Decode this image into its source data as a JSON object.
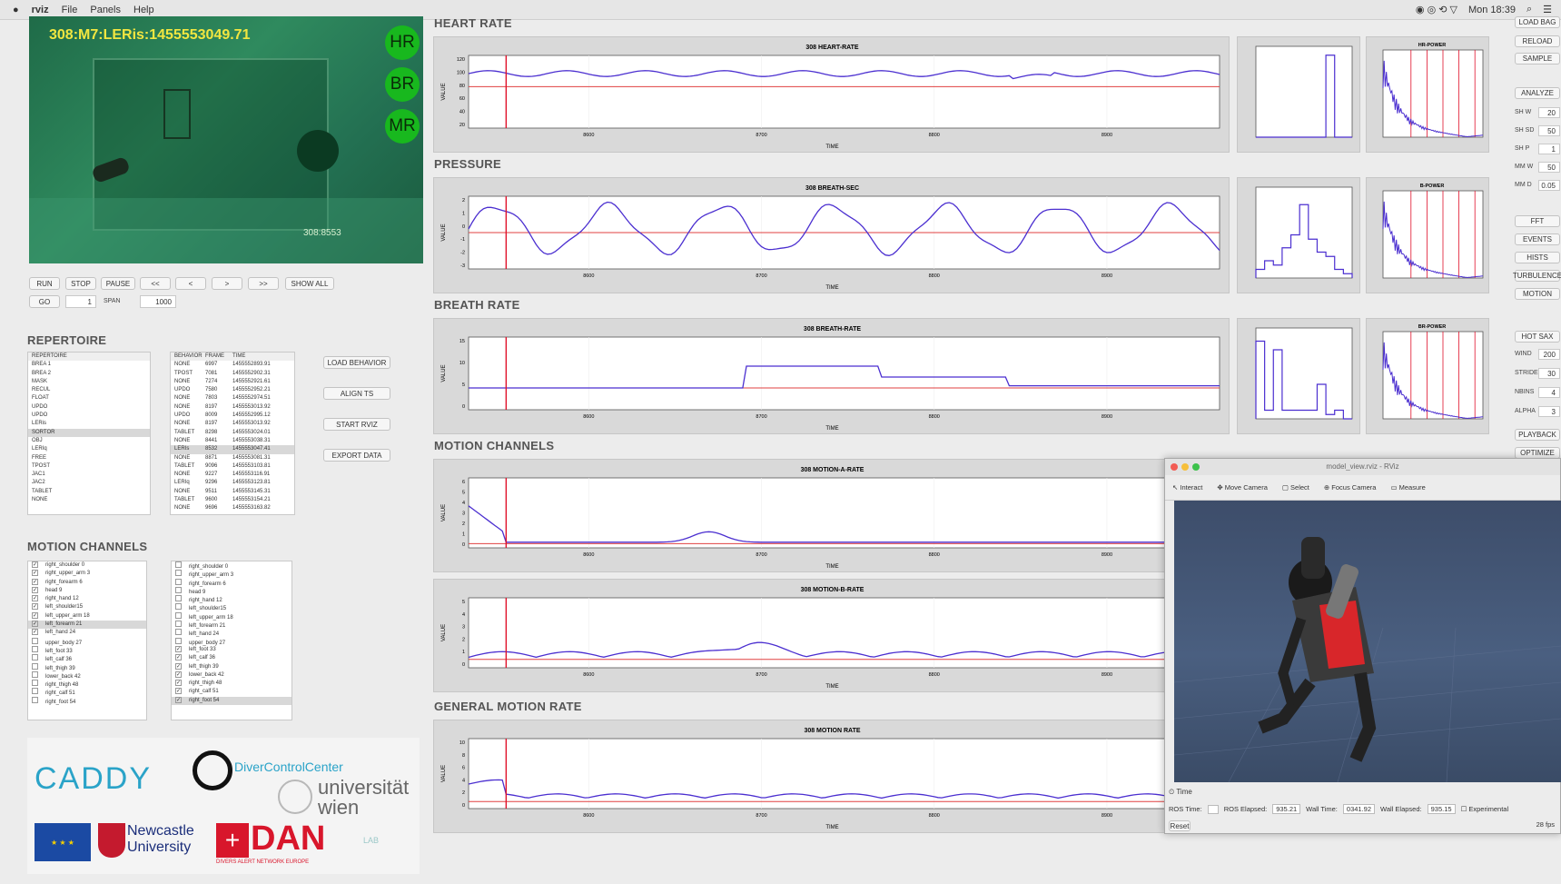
{
  "menubar": {
    "apple": "",
    "app": "rviz",
    "items": [
      "File",
      "Panels",
      "Help"
    ],
    "clock": "Mon 18:39"
  },
  "video": {
    "overlay": "308:M7:LERis:1455553049.71",
    "timecode": "308:8553",
    "indicators": [
      "HR",
      "BR",
      "MR"
    ]
  },
  "controls": {
    "buttons": [
      "RUN",
      "STOP",
      "PAUSE",
      "<<",
      "<",
      ">",
      ">>",
      "SHOW ALL"
    ],
    "go": "GO",
    "go_value": "1",
    "span_label": "SPAN",
    "span_value": "1000"
  },
  "repertoire": {
    "title": "REPERTOIRE",
    "header": "REPERTOIRE",
    "items": [
      "BREA 1",
      "BREA 2",
      "MASK",
      "RECUL",
      "FLOAT",
      "UPDO",
      "UPDO",
      "LERis",
      "SORTOR",
      "OBJ",
      "LERIq",
      "FREE",
      "TPOST",
      "JAC1",
      "JAC2",
      "TABLET",
      "NONE"
    ],
    "selected_index": 8,
    "events_header": {
      "behavior": "BEHAVIOR",
      "frame": "FRAME",
      "time": "TIME"
    },
    "events": [
      [
        "NONE",
        "6997",
        "1455552893.91"
      ],
      [
        "TPOST",
        "7081",
        "1455552902.31"
      ],
      [
        "NONE",
        "7274",
        "1455552921.61"
      ],
      [
        "UPDO",
        "7580",
        "1455552952.21"
      ],
      [
        "NONE",
        "7803",
        "1455552974.51"
      ],
      [
        "NONE",
        "8197",
        "1455553013.92"
      ],
      [
        "UPDO",
        "8009",
        "1455552995.12"
      ],
      [
        "NONE",
        "8197",
        "1455553013.92"
      ],
      [
        "TABLET",
        "8298",
        "1455553024.01"
      ],
      [
        "NONE",
        "8441",
        "1455553038.31"
      ],
      [
        "LERIs",
        "8532",
        "1455553047.41"
      ],
      [
        "NONE",
        "8871",
        "1455553081.31"
      ],
      [
        "TABLET",
        "9096",
        "1455553103.81"
      ],
      [
        "NONE",
        "9227",
        "1455553116.91"
      ],
      [
        "LERIq",
        "9296",
        "1455553123.81"
      ],
      [
        "NONE",
        "9511",
        "1455553145.31"
      ],
      [
        "TABLET",
        "9600",
        "1455553154.21"
      ],
      [
        "NONE",
        "9696",
        "1455553163.82"
      ]
    ],
    "event_selected_index": 10,
    "side_buttons": [
      "LOAD BEHAVIOR",
      "ALIGN TS",
      "START RVIZ",
      "EXPORT DATA"
    ]
  },
  "motion": {
    "title": "MOTION CHANNELS",
    "left": [
      "right_shoulder 0",
      "right_upper_arm 3",
      "right_forearm 6",
      "head 9",
      "right_hand 12",
      "left_shoulder15",
      "left_upper_arm 18",
      "left_forearm 21",
      "left_hand 24",
      "upper_body 27",
      "left_foot 33",
      "left_calf 36",
      "left_thigh 39",
      "lower_back 42",
      "right_thigh 48",
      "right_calf 51",
      "right_foot 54"
    ],
    "left_checked": [
      1,
      1,
      1,
      1,
      1,
      1,
      1,
      1,
      1,
      0,
      0,
      0,
      0,
      0,
      0,
      0,
      0
    ],
    "left_selected": 7,
    "right": [
      "right_shoulder 0",
      "right_upper_arm 3",
      "right_forearm 6",
      "head 9",
      "right_hand 12",
      "left_shoulder15",
      "left_upper_arm 18",
      "left_forearm 21",
      "left_hand 24",
      "upper_body 27",
      "left_foot 33",
      "left_calf 36",
      "left_thigh 39",
      "lower_back 42",
      "right_thigh 48",
      "right_calf 51",
      "right_foot 54"
    ],
    "right_checked": [
      0,
      0,
      0,
      0,
      0,
      0,
      0,
      0,
      0,
      0,
      1,
      1,
      1,
      1,
      1,
      1,
      1
    ],
    "right_selected": 16
  },
  "logos": {
    "caddy": "CADDY",
    "dcc": "DiverControlCenter",
    "uni1": "universität",
    "uni2": "wien",
    "ncl1": "Newcastle",
    "ncl2": "University",
    "dan": "DAN",
    "dan_sub": "DIVERS ALERT NETWORK EUROPE",
    "lab": "LAB"
  },
  "sections": [
    "HEART RATE",
    "PRESSURE",
    "BREATH RATE",
    "MOTION CHANNELS",
    "GENERAL MOTION RATE"
  ],
  "plots": [
    {
      "title": "308 HEART-RATE",
      "ylabel": "VALUE",
      "xlabel": "TIME",
      "yticks": [
        "120",
        "100",
        "80",
        "60",
        "40",
        "20"
      ],
      "xticks": [
        "8600",
        "8700",
        "8800",
        "8900"
      ]
    },
    {
      "title": "308 BREATH-SEC",
      "ylabel": "VALUE",
      "xlabel": "TIME",
      "yticks": [
        "2",
        "1",
        "0",
        "-1",
        "-2",
        "-3"
      ],
      "xticks": [
        "8600",
        "8700",
        "8800",
        "8900"
      ]
    },
    {
      "title": "308 BREATH-RATE",
      "ylabel": "VALUE",
      "xlabel": "TIME",
      "yticks": [
        "15",
        "10",
        "5",
        "0"
      ],
      "xticks": [
        "8600",
        "8700",
        "8800",
        "8900"
      ]
    },
    {
      "title": "308 MOTION-A-RATE",
      "ylabel": "VALUE",
      "xlabel": "TIME",
      "yticks": [
        "6",
        "5",
        "4",
        "3",
        "2",
        "1",
        "0"
      ],
      "xticks": [
        "8600",
        "8700",
        "8800",
        "8900"
      ]
    },
    {
      "title": "308 MOTION-B-RATE",
      "ylabel": "VALUE",
      "xlabel": "TIME",
      "yticks": [
        "5",
        "4",
        "3",
        "2",
        "1",
        "0"
      ],
      "xticks": [
        "8600",
        "8700",
        "8800",
        "8900"
      ]
    },
    {
      "title": "308 MOTION RATE",
      "ylabel": "VALUE",
      "xlabel": "TIME",
      "yticks": [
        "10",
        "8",
        "6",
        "4",
        "2",
        "0"
      ],
      "xticks": [
        "8600",
        "8700",
        "8800",
        "8900"
      ]
    }
  ],
  "power_titles": [
    "HR-POWER",
    "B-POWER",
    "BR-POWER"
  ],
  "right_panel": {
    "buttons": [
      "LOAD BAG",
      "RELOAD",
      "SAMPLE",
      "ANALYZE"
    ],
    "params": [
      {
        "label": "SH W",
        "value": "20"
      },
      {
        "label": "SH SD",
        "value": "50"
      },
      {
        "label": "SH P",
        "value": "1"
      },
      {
        "label": "MM W",
        "value": "50"
      },
      {
        "label": "MM D",
        "value": "0.05"
      }
    ],
    "buttons2": [
      "FFT",
      "EVENTS",
      "HISTS",
      "TURBULENCE",
      "MOTION",
      "HOT SAX"
    ],
    "params2": [
      {
        "label": "WIND",
        "value": "200"
      },
      {
        "label": "STRIDE",
        "value": "30"
      },
      {
        "label": "NBINS",
        "value": "4"
      },
      {
        "label": "ALPHA",
        "value": "3"
      }
    ],
    "buttons3": [
      "PLAYBACK",
      "OPTIMIZE"
    ]
  },
  "rviz": {
    "title": "model_view.rviz - RViz",
    "tools": [
      "Interact",
      "Move Camera",
      "Select",
      "Focus Camera",
      "Measure"
    ],
    "time_label": "Time",
    "ros_time": "ROS Time:",
    "ros_elapsed_label": "ROS Elapsed:",
    "ros_elapsed": "935.21",
    "wall_time_label": "Wall Time:",
    "wall_time": "0341.92",
    "wall_elapsed_label": "Wall Elapsed:",
    "wall_elapsed": "935.15",
    "experimental": "Experimental",
    "reset": "Reset",
    "fps": "28 fps"
  },
  "colors": {
    "series": "#4b2fd0",
    "marker": "#e0102a",
    "threshold": "#e04040",
    "indicator": "#18b81e",
    "video_text": "#f2e640"
  }
}
